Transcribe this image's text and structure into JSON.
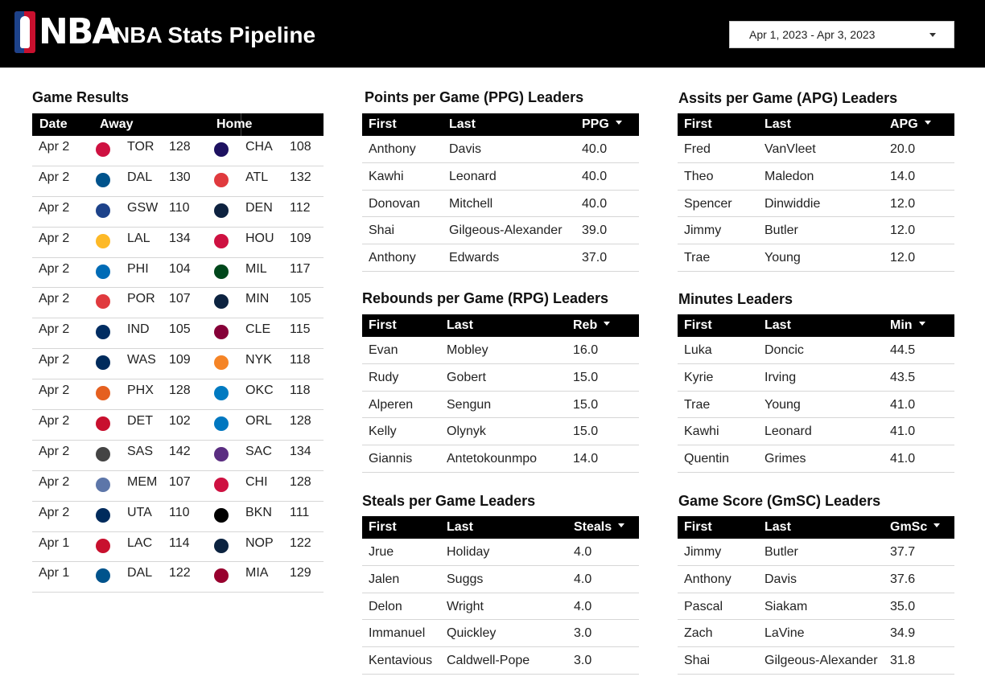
{
  "header": {
    "logo_text": "NBA",
    "title": "NBA Stats Pipeline",
    "date_range": "Apr 1, 2023 - Apr 3, 2023"
  },
  "game_results": {
    "title": "Game Results",
    "columns": {
      "date": "Date",
      "away": "Away",
      "home": "Home"
    },
    "rows": [
      {
        "date": "Apr 2",
        "away": "TOR",
        "away_score": "128",
        "home": "CHA",
        "home_score": "108",
        "away_color": "#ce1141",
        "home_color": "#1d1160"
      },
      {
        "date": "Apr 2",
        "away": "DAL",
        "away_score": "130",
        "home": "ATL",
        "home_score": "132",
        "away_color": "#00538c",
        "home_color": "#e03a3e"
      },
      {
        "date": "Apr 2",
        "away": "GSW",
        "away_score": "110",
        "home": "DEN",
        "home_score": "112",
        "away_color": "#1d428a",
        "home_color": "#0e2240"
      },
      {
        "date": "Apr 2",
        "away": "LAL",
        "away_score": "134",
        "home": "HOU",
        "home_score": "109",
        "away_color": "#fdb927",
        "home_color": "#ce1141"
      },
      {
        "date": "Apr 2",
        "away": "PHI",
        "away_score": "104",
        "home": "MIL",
        "home_score": "117",
        "away_color": "#006bb6",
        "home_color": "#00471b"
      },
      {
        "date": "Apr 2",
        "away": "POR",
        "away_score": "107",
        "home": "MIN",
        "home_score": "105",
        "away_color": "#e03a3e",
        "home_color": "#0c2340"
      },
      {
        "date": "Apr 2",
        "away": "IND",
        "away_score": "105",
        "home": "CLE",
        "home_score": "115",
        "away_color": "#002d62",
        "home_color": "#860038"
      },
      {
        "date": "Apr 2",
        "away": "WAS",
        "away_score": "109",
        "home": "NYK",
        "home_score": "118",
        "away_color": "#002b5c",
        "home_color": "#f58426"
      },
      {
        "date": "Apr 2",
        "away": "PHX",
        "away_score": "128",
        "home": "OKC",
        "home_score": "118",
        "away_color": "#e56020",
        "home_color": "#007ac1"
      },
      {
        "date": "Apr 2",
        "away": "DET",
        "away_score": "102",
        "home": "ORL",
        "home_score": "128",
        "away_color": "#c8102e",
        "home_color": "#0077c0"
      },
      {
        "date": "Apr 2",
        "away": "SAS",
        "away_score": "142",
        "home": "SAC",
        "home_score": "134",
        "away_color": "#444444",
        "home_color": "#5a2d81"
      },
      {
        "date": "Apr 2",
        "away": "MEM",
        "away_score": "107",
        "home": "CHI",
        "home_score": "128",
        "away_color": "#5d76a9",
        "home_color": "#ce1141"
      },
      {
        "date": "Apr 2",
        "away": "UTA",
        "away_score": "110",
        "home": "BKN",
        "home_score": "111",
        "away_color": "#002b5c",
        "home_color": "#000000"
      },
      {
        "date": "Apr 1",
        "away": "LAC",
        "away_score": "114",
        "home": "NOP",
        "home_score": "122",
        "away_color": "#c8102e",
        "home_color": "#0c2340"
      },
      {
        "date": "Apr 1",
        "away": "DAL",
        "away_score": "122",
        "home": "MIA",
        "home_score": "129",
        "away_color": "#00538c",
        "home_color": "#98002e"
      }
    ]
  },
  "ppg": {
    "title": "Points per Game (PPG) Leaders",
    "columns": {
      "first": "First",
      "last": "Last",
      "stat": "PPG"
    },
    "rows": [
      {
        "first": "Anthony",
        "last": "Davis",
        "stat": "40.0"
      },
      {
        "first": "Kawhi",
        "last": "Leonard",
        "stat": "40.0"
      },
      {
        "first": "Donovan",
        "last": "Mitchell",
        "stat": "40.0"
      },
      {
        "first": "Shai",
        "last": "Gilgeous-Alexander",
        "stat": "39.0"
      },
      {
        "first": "Anthony",
        "last": "Edwards",
        "stat": "37.0"
      }
    ]
  },
  "apg": {
    "title": "Assits per Game (APG) Leaders",
    "columns": {
      "first": "First",
      "last": "Last",
      "stat": "APG"
    },
    "rows": [
      {
        "first": "Fred",
        "last": "VanVleet",
        "stat": "20.0"
      },
      {
        "first": "Theo",
        "last": "Maledon",
        "stat": "14.0"
      },
      {
        "first": "Spencer",
        "last": "Dinwiddie",
        "stat": "12.0"
      },
      {
        "first": "Jimmy",
        "last": "Butler",
        "stat": "12.0"
      },
      {
        "first": "Trae",
        "last": "Young",
        "stat": "12.0"
      }
    ]
  },
  "rpg": {
    "title": "Rebounds per Game (RPG) Leaders",
    "columns": {
      "first": "First",
      "last": "Last",
      "stat": "Reb"
    },
    "rows": [
      {
        "first": "Evan",
        "last": "Mobley",
        "stat": "16.0"
      },
      {
        "first": "Rudy",
        "last": "Gobert",
        "stat": "15.0"
      },
      {
        "first": "Alperen",
        "last": "Sengun",
        "stat": "15.0"
      },
      {
        "first": "Kelly",
        "last": "Olynyk",
        "stat": "15.0"
      },
      {
        "first": "Giannis",
        "last": "Antetokounmpo",
        "stat": "14.0"
      }
    ]
  },
  "minutes": {
    "title": "Minutes Leaders",
    "columns": {
      "first": "First",
      "last": "Last",
      "stat": "Min"
    },
    "rows": [
      {
        "first": "Luka",
        "last": "Doncic",
        "stat": "44.5"
      },
      {
        "first": "Kyrie",
        "last": "Irving",
        "stat": "43.5"
      },
      {
        "first": "Trae",
        "last": "Young",
        "stat": "41.0"
      },
      {
        "first": "Kawhi",
        "last": "Leonard",
        "stat": "41.0"
      },
      {
        "first": "Quentin",
        "last": "Grimes",
        "stat": "41.0"
      }
    ]
  },
  "steals": {
    "title": "Steals per Game Leaders",
    "columns": {
      "first": "First",
      "last": "Last",
      "stat": "Steals"
    },
    "rows": [
      {
        "first": "Jrue",
        "last": "Holiday",
        "stat": "4.0"
      },
      {
        "first": "Jalen",
        "last": "Suggs",
        "stat": "4.0"
      },
      {
        "first": "Delon",
        "last": "Wright",
        "stat": "4.0"
      },
      {
        "first": "Immanuel",
        "last": "Quickley",
        "stat": "3.0"
      },
      {
        "first": "Kentavious",
        "last": "Caldwell-Pope",
        "stat": "3.0"
      }
    ]
  },
  "gmsc": {
    "title": "Game Score (GmSC) Leaders",
    "columns": {
      "first": "First",
      "last": "Last",
      "stat": "GmSc"
    },
    "rows": [
      {
        "first": "Jimmy",
        "last": "Butler",
        "stat": "37.7"
      },
      {
        "first": "Anthony",
        "last": "Davis",
        "stat": "37.6"
      },
      {
        "first": "Pascal",
        "last": "Siakam",
        "stat": "35.0"
      },
      {
        "first": "Zach",
        "last": "LaVine",
        "stat": "34.9"
      },
      {
        "first": "Shai",
        "last": "Gilgeous-Alexander",
        "stat": "31.8"
      }
    ]
  }
}
